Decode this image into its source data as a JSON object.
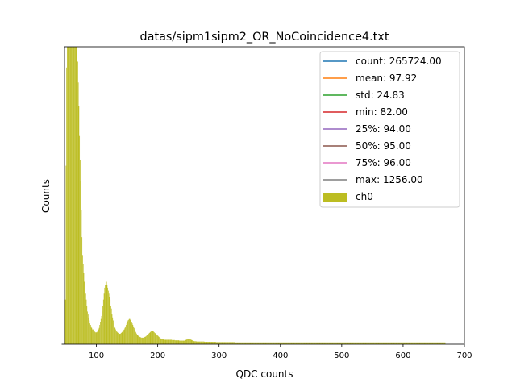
{
  "chart_data": {
    "type": "bar",
    "title": "datas/sipm1sipm2_OR_NoCoincidence4.txt",
    "xlabel": "QDC counts",
    "ylabel": "Counts",
    "xlim": [
      48,
      700
    ],
    "ylim": [
      0,
      1
    ],
    "xticks": [
      100,
      200,
      300,
      400,
      500,
      600,
      700
    ],
    "yticks_labeled": false,
    "grid": false,
    "legend": {
      "placement": "top-right",
      "entries": [
        {
          "label": "count: 265724.00",
          "color": "#1f77b4",
          "kind": "line"
        },
        {
          "label": "mean: 97.92",
          "color": "#ff7f0e",
          "kind": "line"
        },
        {
          "label": "std: 24.83",
          "color": "#2ca02c",
          "kind": "line"
        },
        {
          "label": "min: 82.00",
          "color": "#d62728",
          "kind": "line"
        },
        {
          "label": "25%: 94.00",
          "color": "#9467bd",
          "kind": "line"
        },
        {
          "label": "50%: 95.00",
          "color": "#8c564b",
          "kind": "line"
        },
        {
          "label": "75%: 96.00",
          "color": "#e377c2",
          "kind": "line"
        },
        {
          "label": "max: 1256.00",
          "color": "#7f7f7f",
          "kind": "line"
        },
        {
          "label": "ch0",
          "color": "#bcbd22",
          "kind": "patch"
        }
      ]
    },
    "series": [
      {
        "name": "ch0",
        "color": "#bcbd22",
        "bin_width": 1,
        "x_start": 49,
        "values": [
          0.15,
          0.6,
          0.93,
          1.0,
          1.0,
          1.0,
          1.0,
          1.0,
          1.0,
          1.0,
          1.0,
          1.0,
          1.0,
          1.0,
          1.0,
          1.0,
          1.0,
          1.0,
          1.0,
          1.0,
          0.95,
          0.88,
          0.8,
          0.7,
          0.62,
          0.55,
          0.45,
          0.36,
          0.3,
          0.27,
          0.24,
          0.21,
          0.19,
          0.17,
          0.15,
          0.13,
          0.11,
          0.1,
          0.09,
          0.08,
          0.07,
          0.065,
          0.06,
          0.055,
          0.05,
          0.05,
          0.048,
          0.045,
          0.042,
          0.04,
          0.04,
          0.04,
          0.042,
          0.045,
          0.05,
          0.055,
          0.065,
          0.075,
          0.085,
          0.095,
          0.11,
          0.13,
          0.15,
          0.17,
          0.19,
          0.2,
          0.21,
          0.21,
          0.2,
          0.19,
          0.18,
          0.17,
          0.16,
          0.15,
          0.13,
          0.12,
          0.1,
          0.09,
          0.08,
          0.07,
          0.06,
          0.055,
          0.05,
          0.045,
          0.042,
          0.04,
          0.038,
          0.036,
          0.035,
          0.035,
          0.036,
          0.038,
          0.04,
          0.042,
          0.045,
          0.048,
          0.05,
          0.055,
          0.06,
          0.065,
          0.07,
          0.075,
          0.08,
          0.082,
          0.085,
          0.085,
          0.082,
          0.08,
          0.075,
          0.07,
          0.065,
          0.06,
          0.055,
          0.05,
          0.045,
          0.04,
          0.036,
          0.032,
          0.03,
          0.028,
          0.026,
          0.025,
          0.024,
          0.023,
          0.022,
          0.022,
          0.022,
          0.022,
          0.023,
          0.024,
          0.025,
          0.026,
          0.028,
          0.03,
          0.032,
          0.034,
          0.036,
          0.038,
          0.04,
          0.042,
          0.044,
          0.045,
          0.045,
          0.044,
          0.042,
          0.04,
          0.038,
          0.036,
          0.034,
          0.032,
          0.03,
          0.028,
          0.026,
          0.024,
          0.022,
          0.02,
          0.019,
          0.018,
          0.017,
          0.016,
          0.016,
          0.015,
          0.015,
          0.015,
          0.015,
          0.015,
          0.015,
          0.015,
          0.015,
          0.015,
          0.015,
          0.015,
          0.015,
          0.015,
          0.014,
          0.014,
          0.014,
          0.014,
          0.014,
          0.013,
          0.013,
          0.013,
          0.013,
          0.013,
          0.013,
          0.013,
          0.012,
          0.012,
          0.012,
          0.012,
          0.012,
          0.012,
          0.012,
          0.012,
          0.012,
          0.013,
          0.014,
          0.015,
          0.016,
          0.017,
          0.018,
          0.018,
          0.018,
          0.017,
          0.016,
          0.015,
          0.014,
          0.013,
          0.012,
          0.011,
          0.01,
          0.01,
          0.01,
          0.01,
          0.009,
          0.009,
          0.009,
          0.009,
          0.009,
          0.009,
          0.009,
          0.009,
          0.009,
          0.009,
          0.009,
          0.009,
          0.009,
          0.008,
          0.008,
          0.008,
          0.008,
          0.008,
          0.008,
          0.008,
          0.008,
          0.008,
          0.008,
          0.008,
          0.008,
          0.008,
          0.008,
          0.008,
          0.008,
          0.008,
          0.008,
          0.008,
          0.007,
          0.007,
          0.007,
          0.007,
          0.007,
          0.007,
          0.007,
          0.007,
          0.007,
          0.007,
          0.007,
          0.007,
          0.007,
          0.007,
          0.007,
          0.007,
          0.007,
          0.007,
          0.007,
          0.007,
          0.007,
          0.007,
          0.007,
          0.007,
          0.007,
          0.007,
          0.007,
          0.007,
          0.007,
          0.007,
          0.007,
          0.006,
          0.006,
          0.006,
          0.006,
          0.006,
          0.006,
          0.006,
          0.006,
          0.006,
          0.006,
          0.006,
          0.006,
          0.006,
          0.006,
          0.006,
          0.006,
          0.006,
          0.006,
          0.006,
          0.006,
          0.006,
          0.006,
          0.006,
          0.006,
          0.006,
          0.006,
          0.006,
          0.006,
          0.006,
          0.006,
          0.006,
          0.006,
          0.006,
          0.006,
          0.006,
          0.006,
          0.006,
          0.006,
          0.006,
          0.006,
          0.006,
          0.006,
          0.006,
          0.006,
          0.006,
          0.006,
          0.006,
          0.006,
          0.006,
          0.006,
          0.006,
          0.006,
          0.006,
          0.006,
          0.006,
          0.006,
          0.006,
          0.006,
          0.006,
          0.006,
          0.006,
          0.006,
          0.006,
          0.006,
          0.006,
          0.006,
          0.006,
          0.006,
          0.006,
          0.006,
          0.006,
          0.006,
          0.006,
          0.006,
          0.006,
          0.006,
          0.006,
          0.006,
          0.006,
          0.006,
          0.006,
          0.006,
          0.006,
          0.006,
          0.006,
          0.006,
          0.006,
          0.006,
          0.006,
          0.006,
          0.006,
          0.006,
          0.006,
          0.006,
          0.006,
          0.006,
          0.006,
          0.006,
          0.006,
          0.006,
          0.006,
          0.006,
          0.006,
          0.006,
          0.006,
          0.006,
          0.006,
          0.006,
          0.006,
          0.006,
          0.006,
          0.006,
          0.006,
          0.006,
          0.006,
          0.006,
          0.006,
          0.006,
          0.006,
          0.006,
          0.006,
          0.006,
          0.006,
          0.006,
          0.006,
          0.006,
          0.006,
          0.006,
          0.006,
          0.006,
          0.006,
          0.006,
          0.006,
          0.006,
          0.006,
          0.006,
          0.006,
          0.006,
          0.006,
          0.006,
          0.006,
          0.006,
          0.006,
          0.006,
          0.006,
          0.006,
          0.006,
          0.006,
          0.006,
          0.006,
          0.006,
          0.006,
          0.006,
          0.006,
          0.006,
          0.006,
          0.006,
          0.006,
          0.006,
          0.006,
          0.006,
          0.006,
          0.006,
          0.006,
          0.006,
          0.006,
          0.006,
          0.006,
          0.006,
          0.006,
          0.006,
          0.006,
          0.006,
          0.006,
          0.006,
          0.006,
          0.006,
          0.006,
          0.006,
          0.006,
          0.006,
          0.006,
          0.006,
          0.006,
          0.006,
          0.006,
          0.006,
          0.006,
          0.006,
          0.006,
          0.006,
          0.006,
          0.006,
          0.006,
          0.006,
          0.006,
          0.006,
          0.006,
          0.006,
          0.006,
          0.006,
          0.006,
          0.006,
          0.006,
          0.006,
          0.006,
          0.006,
          0.006,
          0.006,
          0.006,
          0.006,
          0.006,
          0.006,
          0.006,
          0.006,
          0.006,
          0.006,
          0.006,
          0.006,
          0.006,
          0.006,
          0.006,
          0.006,
          0.006,
          0.006,
          0.006,
          0.006,
          0.006,
          0.006,
          0.006,
          0.006,
          0.006,
          0.006,
          0.006,
          0.006,
          0.006,
          0.006,
          0.006,
          0.006,
          0.006,
          0.006,
          0.006,
          0.006,
          0.006,
          0.006,
          0.006,
          0.006,
          0.006,
          0.006,
          0.006,
          0.006,
          0.006,
          0.006,
          0.006,
          0.006,
          0.006,
          0.006,
          0.006,
          0.006,
          0.006,
          0.006,
          0.006,
          0.006,
          0.006,
          0.006,
          0.006,
          0.006,
          0.006,
          0.006,
          0.006,
          0.006,
          0.006,
          0.006,
          0.006,
          0.006,
          0.006,
          0.006,
          0.006,
          0.006,
          0.006,
          0.006,
          0.006,
          0.006,
          0.006,
          0.006,
          0.006,
          0.006,
          0.006,
          0.006,
          0.006,
          0.006,
          0.006,
          0.006,
          0.006,
          0.006,
          0.006,
          0.006,
          0.006,
          0.006,
          0.006,
          0.006,
          0.006,
          0.006,
          0.006,
          0.006,
          0.006,
          0.006,
          0.006,
          0.006,
          0.006,
          0.006,
          0.006,
          0.006,
          0.006,
          0.006,
          0.006,
          0.006,
          0.006,
          0.006,
          0.006,
          0.006,
          0.006,
          0.006,
          0.006,
          0.006,
          0.006,
          0.006,
          0.006,
          0.006,
          0.006,
          0.006,
          0.006,
          0.006,
          0.006,
          0.006,
          0.006,
          0.006,
          0.006,
          0.006,
          0.006,
          0.006,
          0.006,
          0.006
        ]
      }
    ]
  }
}
